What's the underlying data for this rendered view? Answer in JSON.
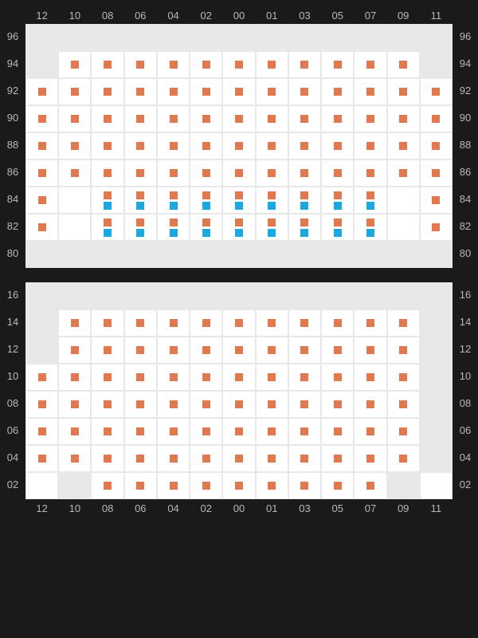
{
  "colors": {
    "background": "#1a1a1a",
    "inactive_cell": "#e8e8e8",
    "active_cell": "#ffffff",
    "label": "#b8b8b8",
    "orange": "#e07850",
    "blue": "#1ba8e0"
  },
  "column_labels": [
    "12",
    "10",
    "08",
    "06",
    "04",
    "02",
    "00",
    "01",
    "03",
    "05",
    "07",
    "09",
    "11"
  ],
  "sections": [
    {
      "id": "top",
      "row_labels": [
        "96",
        "94",
        "92",
        "90",
        "88",
        "86",
        "84",
        "82",
        "80"
      ],
      "cells": [
        [
          {
            "a": 0
          },
          {
            "a": 0
          },
          {
            "a": 0
          },
          {
            "a": 0
          },
          {
            "a": 0
          },
          {
            "a": 0
          },
          {
            "a": 0
          },
          {
            "a": 0
          },
          {
            "a": 0
          },
          {
            "a": 0
          },
          {
            "a": 0
          },
          {
            "a": 0
          },
          {
            "a": 0
          }
        ],
        [
          {
            "a": 0
          },
          {
            "a": 1,
            "m": [
              "o"
            ]
          },
          {
            "a": 1,
            "m": [
              "o"
            ]
          },
          {
            "a": 1,
            "m": [
              "o"
            ]
          },
          {
            "a": 1,
            "m": [
              "o"
            ]
          },
          {
            "a": 1,
            "m": [
              "o"
            ]
          },
          {
            "a": 1,
            "m": [
              "o"
            ]
          },
          {
            "a": 1,
            "m": [
              "o"
            ]
          },
          {
            "a": 1,
            "m": [
              "o"
            ]
          },
          {
            "a": 1,
            "m": [
              "o"
            ]
          },
          {
            "a": 1,
            "m": [
              "o"
            ]
          },
          {
            "a": 1,
            "m": [
              "o"
            ]
          },
          {
            "a": 0
          }
        ],
        [
          {
            "a": 1,
            "m": [
              "o"
            ]
          },
          {
            "a": 1,
            "m": [
              "o"
            ]
          },
          {
            "a": 1,
            "m": [
              "o"
            ]
          },
          {
            "a": 1,
            "m": [
              "o"
            ]
          },
          {
            "a": 1,
            "m": [
              "o"
            ]
          },
          {
            "a": 1,
            "m": [
              "o"
            ]
          },
          {
            "a": 1,
            "m": [
              "o"
            ]
          },
          {
            "a": 1,
            "m": [
              "o"
            ]
          },
          {
            "a": 1,
            "m": [
              "o"
            ]
          },
          {
            "a": 1,
            "m": [
              "o"
            ]
          },
          {
            "a": 1,
            "m": [
              "o"
            ]
          },
          {
            "a": 1,
            "m": [
              "o"
            ]
          },
          {
            "a": 1,
            "m": [
              "o"
            ]
          }
        ],
        [
          {
            "a": 1,
            "m": [
              "o"
            ]
          },
          {
            "a": 1,
            "m": [
              "o"
            ]
          },
          {
            "a": 1,
            "m": [
              "o"
            ]
          },
          {
            "a": 1,
            "m": [
              "o"
            ]
          },
          {
            "a": 1,
            "m": [
              "o"
            ]
          },
          {
            "a": 1,
            "m": [
              "o"
            ]
          },
          {
            "a": 1,
            "m": [
              "o"
            ]
          },
          {
            "a": 1,
            "m": [
              "o"
            ]
          },
          {
            "a": 1,
            "m": [
              "o"
            ]
          },
          {
            "a": 1,
            "m": [
              "o"
            ]
          },
          {
            "a": 1,
            "m": [
              "o"
            ]
          },
          {
            "a": 1,
            "m": [
              "o"
            ]
          },
          {
            "a": 1,
            "m": [
              "o"
            ]
          }
        ],
        [
          {
            "a": 1,
            "m": [
              "o"
            ]
          },
          {
            "a": 1,
            "m": [
              "o"
            ]
          },
          {
            "a": 1,
            "m": [
              "o"
            ]
          },
          {
            "a": 1,
            "m": [
              "o"
            ]
          },
          {
            "a": 1,
            "m": [
              "o"
            ]
          },
          {
            "a": 1,
            "m": [
              "o"
            ]
          },
          {
            "a": 1,
            "m": [
              "o"
            ]
          },
          {
            "a": 1,
            "m": [
              "o"
            ]
          },
          {
            "a": 1,
            "m": [
              "o"
            ]
          },
          {
            "a": 1,
            "m": [
              "o"
            ]
          },
          {
            "a": 1,
            "m": [
              "o"
            ]
          },
          {
            "a": 1,
            "m": [
              "o"
            ]
          },
          {
            "a": 1,
            "m": [
              "o"
            ]
          }
        ],
        [
          {
            "a": 1,
            "m": [
              "o"
            ]
          },
          {
            "a": 1,
            "m": [
              "o"
            ]
          },
          {
            "a": 1,
            "m": [
              "o"
            ]
          },
          {
            "a": 1,
            "m": [
              "o"
            ]
          },
          {
            "a": 1,
            "m": [
              "o"
            ]
          },
          {
            "a": 1,
            "m": [
              "o"
            ]
          },
          {
            "a": 1,
            "m": [
              "o"
            ]
          },
          {
            "a": 1,
            "m": [
              "o"
            ]
          },
          {
            "a": 1,
            "m": [
              "o"
            ]
          },
          {
            "a": 1,
            "m": [
              "o"
            ]
          },
          {
            "a": 1,
            "m": [
              "o"
            ]
          },
          {
            "a": 1,
            "m": [
              "o"
            ]
          },
          {
            "a": 1,
            "m": [
              "o"
            ]
          }
        ],
        [
          {
            "a": 1,
            "m": [
              "o"
            ]
          },
          {
            "a": 1
          },
          {
            "a": 1,
            "m": [
              "o",
              "b"
            ]
          },
          {
            "a": 1,
            "m": [
              "o",
              "b"
            ]
          },
          {
            "a": 1,
            "m": [
              "o",
              "b"
            ]
          },
          {
            "a": 1,
            "m": [
              "o",
              "b"
            ]
          },
          {
            "a": 1,
            "m": [
              "o",
              "b"
            ]
          },
          {
            "a": 1,
            "m": [
              "o",
              "b"
            ]
          },
          {
            "a": 1,
            "m": [
              "o",
              "b"
            ]
          },
          {
            "a": 1,
            "m": [
              "o",
              "b"
            ]
          },
          {
            "a": 1,
            "m": [
              "o",
              "b"
            ]
          },
          {
            "a": 1
          },
          {
            "a": 1,
            "m": [
              "o"
            ]
          }
        ],
        [
          {
            "a": 1,
            "m": [
              "o"
            ]
          },
          {
            "a": 1
          },
          {
            "a": 1,
            "m": [
              "o",
              "b"
            ]
          },
          {
            "a": 1,
            "m": [
              "o",
              "b"
            ]
          },
          {
            "a": 1,
            "m": [
              "o",
              "b"
            ]
          },
          {
            "a": 1,
            "m": [
              "o",
              "b"
            ]
          },
          {
            "a": 1,
            "m": [
              "o",
              "b"
            ]
          },
          {
            "a": 1,
            "m": [
              "o",
              "b"
            ]
          },
          {
            "a": 1,
            "m": [
              "o",
              "b"
            ]
          },
          {
            "a": 1,
            "m": [
              "o",
              "b"
            ]
          },
          {
            "a": 1,
            "m": [
              "o",
              "b"
            ]
          },
          {
            "a": 1
          },
          {
            "a": 1,
            "m": [
              "o"
            ]
          }
        ],
        [
          {
            "a": 0
          },
          {
            "a": 0
          },
          {
            "a": 0
          },
          {
            "a": 0
          },
          {
            "a": 0
          },
          {
            "a": 0
          },
          {
            "a": 0
          },
          {
            "a": 0
          },
          {
            "a": 0
          },
          {
            "a": 0
          },
          {
            "a": 0
          },
          {
            "a": 0
          },
          {
            "a": 0
          }
        ]
      ]
    },
    {
      "id": "bottom",
      "row_labels": [
        "16",
        "14",
        "12",
        "10",
        "08",
        "06",
        "04",
        "02"
      ],
      "cells": [
        [
          {
            "a": 0
          },
          {
            "a": 0
          },
          {
            "a": 0
          },
          {
            "a": 0
          },
          {
            "a": 0
          },
          {
            "a": 0
          },
          {
            "a": 0
          },
          {
            "a": 0
          },
          {
            "a": 0
          },
          {
            "a": 0
          },
          {
            "a": 0
          },
          {
            "a": 0
          },
          {
            "a": 0
          }
        ],
        [
          {
            "a": 0
          },
          {
            "a": 1,
            "m": [
              "o"
            ]
          },
          {
            "a": 1,
            "m": [
              "o"
            ]
          },
          {
            "a": 1,
            "m": [
              "o"
            ]
          },
          {
            "a": 1,
            "m": [
              "o"
            ]
          },
          {
            "a": 1,
            "m": [
              "o"
            ]
          },
          {
            "a": 1,
            "m": [
              "o"
            ]
          },
          {
            "a": 1,
            "m": [
              "o"
            ]
          },
          {
            "a": 1,
            "m": [
              "o"
            ]
          },
          {
            "a": 1,
            "m": [
              "o"
            ]
          },
          {
            "a": 1,
            "m": [
              "o"
            ]
          },
          {
            "a": 1,
            "m": [
              "o"
            ]
          },
          {
            "a": 0
          }
        ],
        [
          {
            "a": 0
          },
          {
            "a": 1,
            "m": [
              "o"
            ]
          },
          {
            "a": 1,
            "m": [
              "o"
            ]
          },
          {
            "a": 1,
            "m": [
              "o"
            ]
          },
          {
            "a": 1,
            "m": [
              "o"
            ]
          },
          {
            "a": 1,
            "m": [
              "o"
            ]
          },
          {
            "a": 1,
            "m": [
              "o"
            ]
          },
          {
            "a": 1,
            "m": [
              "o"
            ]
          },
          {
            "a": 1,
            "m": [
              "o"
            ]
          },
          {
            "a": 1,
            "m": [
              "o"
            ]
          },
          {
            "a": 1,
            "m": [
              "o"
            ]
          },
          {
            "a": 1,
            "m": [
              "o"
            ]
          },
          {
            "a": 0
          }
        ],
        [
          {
            "a": 1,
            "m": [
              "o"
            ]
          },
          {
            "a": 1,
            "m": [
              "o"
            ]
          },
          {
            "a": 1,
            "m": [
              "o"
            ]
          },
          {
            "a": 1,
            "m": [
              "o"
            ]
          },
          {
            "a": 1,
            "m": [
              "o"
            ]
          },
          {
            "a": 1,
            "m": [
              "o"
            ]
          },
          {
            "a": 1,
            "m": [
              "o"
            ]
          },
          {
            "a": 1,
            "m": [
              "o"
            ]
          },
          {
            "a": 1,
            "m": [
              "o"
            ]
          },
          {
            "a": 1,
            "m": [
              "o"
            ]
          },
          {
            "a": 1,
            "m": [
              "o"
            ]
          },
          {
            "a": 1,
            "m": [
              "o"
            ]
          },
          {
            "a": 0
          }
        ],
        [
          {
            "a": 1,
            "m": [
              "o"
            ]
          },
          {
            "a": 1,
            "m": [
              "o"
            ]
          },
          {
            "a": 1,
            "m": [
              "o"
            ]
          },
          {
            "a": 1,
            "m": [
              "o"
            ]
          },
          {
            "a": 1,
            "m": [
              "o"
            ]
          },
          {
            "a": 1,
            "m": [
              "o"
            ]
          },
          {
            "a": 1,
            "m": [
              "o"
            ]
          },
          {
            "a": 1,
            "m": [
              "o"
            ]
          },
          {
            "a": 1,
            "m": [
              "o"
            ]
          },
          {
            "a": 1,
            "m": [
              "o"
            ]
          },
          {
            "a": 1,
            "m": [
              "o"
            ]
          },
          {
            "a": 1,
            "m": [
              "o"
            ]
          },
          {
            "a": 0
          }
        ],
        [
          {
            "a": 1,
            "m": [
              "o"
            ]
          },
          {
            "a": 1,
            "m": [
              "o"
            ]
          },
          {
            "a": 1,
            "m": [
              "o"
            ]
          },
          {
            "a": 1,
            "m": [
              "o"
            ]
          },
          {
            "a": 1,
            "m": [
              "o"
            ]
          },
          {
            "a": 1,
            "m": [
              "o"
            ]
          },
          {
            "a": 1,
            "m": [
              "o"
            ]
          },
          {
            "a": 1,
            "m": [
              "o"
            ]
          },
          {
            "a": 1,
            "m": [
              "o"
            ]
          },
          {
            "a": 1,
            "m": [
              "o"
            ]
          },
          {
            "a": 1,
            "m": [
              "o"
            ]
          },
          {
            "a": 1,
            "m": [
              "o"
            ]
          },
          {
            "a": 0
          }
        ],
        [
          {
            "a": 1,
            "m": [
              "o"
            ]
          },
          {
            "a": 1,
            "m": [
              "o"
            ]
          },
          {
            "a": 1,
            "m": [
              "o"
            ]
          },
          {
            "a": 1,
            "m": [
              "o"
            ]
          },
          {
            "a": 1,
            "m": [
              "o"
            ]
          },
          {
            "a": 1,
            "m": [
              "o"
            ]
          },
          {
            "a": 1,
            "m": [
              "o"
            ]
          },
          {
            "a": 1,
            "m": [
              "o"
            ]
          },
          {
            "a": 1,
            "m": [
              "o"
            ]
          },
          {
            "a": 1,
            "m": [
              "o"
            ]
          },
          {
            "a": 1,
            "m": [
              "o"
            ]
          },
          {
            "a": 1,
            "m": [
              "o"
            ]
          },
          {
            "a": 0
          }
        ],
        [
          {
            "a": 1
          },
          {
            "a": 0
          },
          {
            "a": 1,
            "m": [
              "o"
            ]
          },
          {
            "a": 1,
            "m": [
              "o"
            ]
          },
          {
            "a": 1,
            "m": [
              "o"
            ]
          },
          {
            "a": 1,
            "m": [
              "o"
            ]
          },
          {
            "a": 1,
            "m": [
              "o"
            ]
          },
          {
            "a": 1,
            "m": [
              "o"
            ]
          },
          {
            "a": 1,
            "m": [
              "o"
            ]
          },
          {
            "a": 1,
            "m": [
              "o"
            ]
          },
          {
            "a": 1,
            "m": [
              "o"
            ]
          },
          {
            "a": 0
          },
          {
            "a": 1
          }
        ]
      ]
    }
  ]
}
